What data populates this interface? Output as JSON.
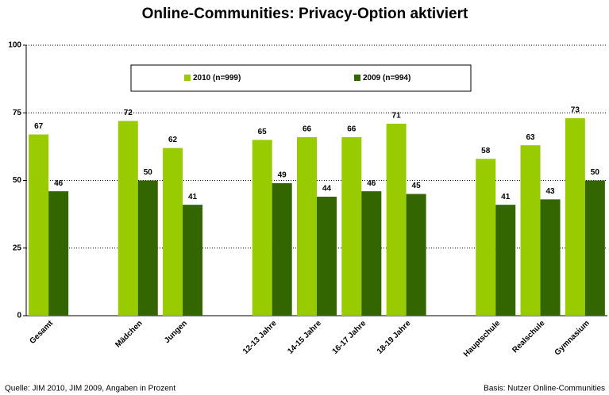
{
  "chart_data": {
    "type": "bar",
    "title": "Online-Communities: Privacy-Option aktiviert",
    "categories": [
      "Gesamt",
      null,
      "Mädchen",
      "Jungen",
      null,
      "12-13 Jahre",
      "14-15 Jahre",
      "16-17 Jahre",
      "18-19 Jahre",
      null,
      "Hauptschule",
      "Realschule",
      "Gymnasium"
    ],
    "series": [
      {
        "name": "2010 (n=999)",
        "color": "#99cc00",
        "values": [
          67,
          null,
          72,
          62,
          null,
          65,
          66,
          66,
          71,
          null,
          58,
          63,
          73
        ]
      },
      {
        "name": "2009 (n=994)",
        "color": "#336600",
        "values": [
          46,
          null,
          50,
          41,
          null,
          49,
          44,
          46,
          45,
          null,
          41,
          43,
          50
        ]
      }
    ],
    "ylim": [
      0,
      100
    ],
    "yticks": [
      0,
      25,
      50,
      75,
      100
    ],
    "grid": true,
    "legend": "top",
    "source": "Quelle:  JIM 2010, JIM 2009, Angaben in Prozent",
    "note": "Basis: Nutzer Online-Communities"
  }
}
